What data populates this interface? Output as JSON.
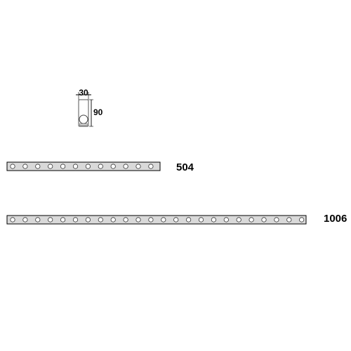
{
  "cross_section": {
    "width_label": "30",
    "height_label": "90"
  },
  "fixtures": [
    {
      "length_label": "504",
      "led_count": 12
    },
    {
      "length_label": "1006",
      "led_count": 24
    }
  ],
  "colors": {
    "line": "#000000",
    "fixture_fill": "#d9d9d9",
    "led_fill": "#ffffff"
  }
}
